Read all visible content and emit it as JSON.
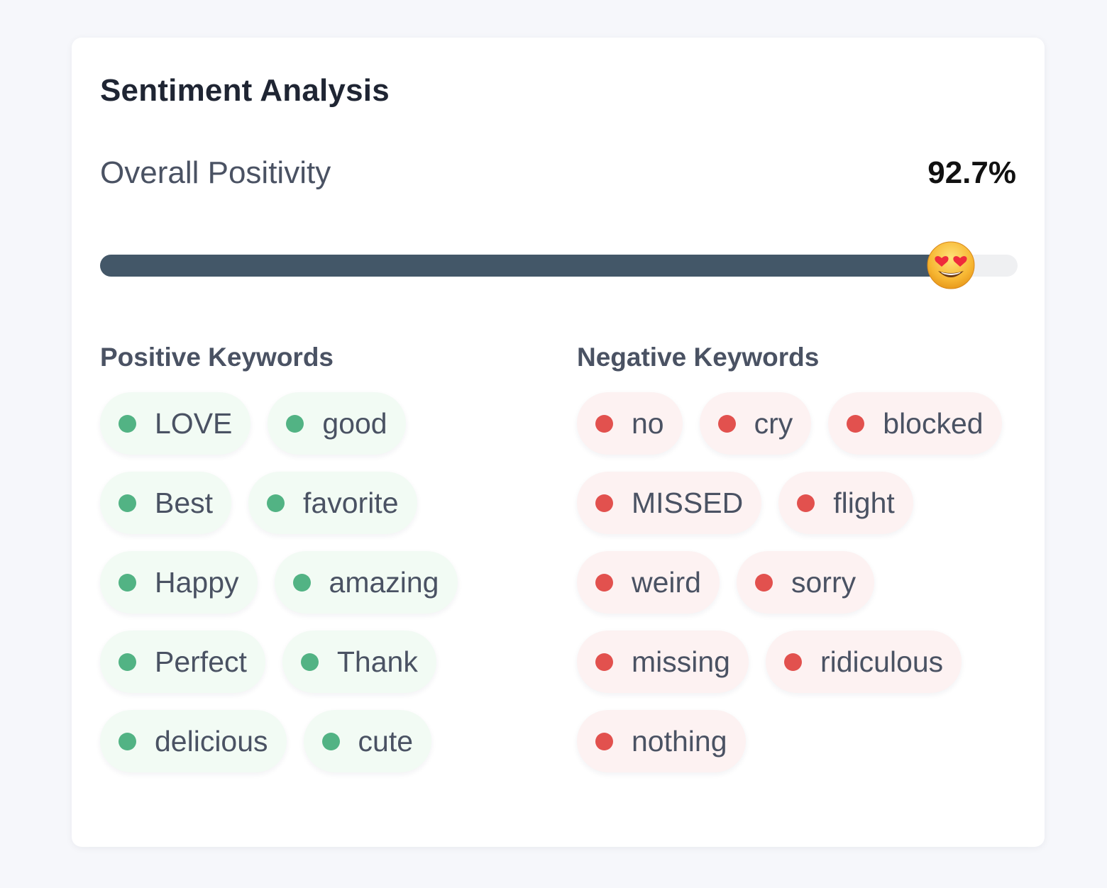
{
  "card": {
    "title": "Sentiment Analysis"
  },
  "positivity": {
    "label": "Overall Positivity",
    "value_text": "92.7%",
    "value": 92.7
  },
  "icons": {
    "thumb": "smiling-face-with-heart-eyes-icon"
  },
  "colors": {
    "progress_fill": "#435768",
    "progress_track": "#eff0f2",
    "positive_dot": "#52b384",
    "negative_dot": "#e2514e",
    "positive_chip_bg": "#f2fbf4",
    "negative_chip_bg": "#fdf2f2"
  },
  "positive_keywords": {
    "heading": "Positive Keywords",
    "items": [
      "LOVE",
      "good",
      "Best",
      "favorite",
      "Happy",
      "amazing",
      "Perfect",
      "Thank",
      "delicious",
      "cute"
    ]
  },
  "negative_keywords": {
    "heading": "Negative Keywords",
    "items": [
      "no",
      "cry",
      "blocked",
      "MISSED",
      "flight",
      "weird",
      "sorry",
      "missing",
      "ridiculous",
      "nothing"
    ]
  }
}
